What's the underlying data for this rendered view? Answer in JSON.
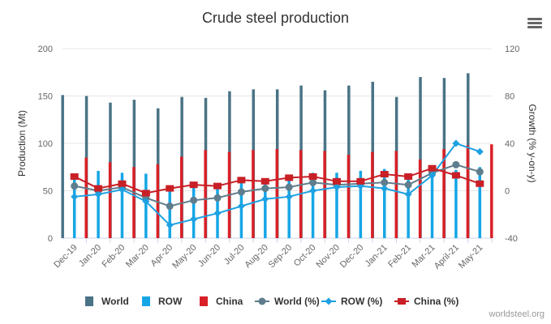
{
  "title": "Crude steel production",
  "credit": "worldsteel.org",
  "menu_icon": "hamburger-menu-icon",
  "colors": {
    "world": "#4a7386",
    "row": "#16a6e6",
    "china": "#d92027",
    "world_line": "#5f7d8c",
    "row_line": "#1da1e2",
    "china_line": "#c91f26"
  },
  "chart_data": {
    "type": "bar",
    "title": "Crude steel production",
    "categories": [
      "Dec-19",
      "Jan-20",
      "Feb-20",
      "Mar-20",
      "Apr-20",
      "May-20",
      "Jun-20",
      "Jul-20",
      "Aug-20",
      "Sep-20",
      "Oct-20",
      "Nov-20",
      "Dec-20",
      "Jan-21",
      "Feb-21",
      "Mar-21",
      "April-21",
      "May-21"
    ],
    "ylabel": "Production (Mt)",
    "ylim": [
      0,
      200
    ],
    "yticks": [
      0,
      50,
      100,
      150,
      200
    ],
    "y2label": "Growth (% y-on-y)",
    "y2lim": [
      -40,
      120
    ],
    "y2ticks": [
      -40,
      0,
      40,
      80,
      120
    ],
    "grid": true,
    "legend_position": "bottom",
    "series": [
      {
        "name": "World",
        "kind": "bar",
        "axis": "left",
        "color": "#4a7386",
        "values": [
          151,
          150,
          143,
          146,
          137,
          149,
          148,
          155,
          157,
          157,
          161,
          156,
          161,
          165,
          149,
          170,
          169,
          174
        ]
      },
      {
        "name": "ROW",
        "kind": "bar",
        "axis": "left",
        "color": "#16a6e6",
        "values": [
          66,
          71,
          69,
          68,
          51,
          56,
          57,
          62,
          63,
          64,
          69,
          69,
          71,
          73,
          66,
          77,
          72,
          75
        ]
      },
      {
        "name": "China",
        "kind": "bar",
        "axis": "left",
        "color": "#d92027",
        "values": [
          85,
          80,
          75,
          78,
          86,
          93,
          91,
          93,
          94,
          93,
          92,
          88,
          91,
          92,
          83,
          94,
          98,
          99
        ]
      },
      {
        "name": "World (%)",
        "kind": "line",
        "axis": "right",
        "color": "#5f7d8c",
        "marker": "circle",
        "values": [
          4,
          0,
          3,
          -6,
          -13,
          -8,
          -6,
          -1,
          2,
          3,
          7,
          5,
          6,
          7,
          5,
          15,
          22,
          16
        ]
      },
      {
        "name": "ROW (%)",
        "kind": "line",
        "axis": "right",
        "color": "#1da1e2",
        "marker": "diamond",
        "values": [
          -5,
          -3,
          1,
          -9,
          -29,
          -24,
          -19,
          -13,
          -7,
          -5,
          0,
          3,
          4,
          2,
          -3,
          13,
          40,
          33
        ]
      },
      {
        "name": "China (%)",
        "kind": "line",
        "axis": "right",
        "color": "#c91f26",
        "marker": "square",
        "values": [
          12,
          2,
          6,
          -2,
          2,
          5,
          4,
          9,
          8,
          11,
          12,
          8,
          8,
          14,
          12,
          19,
          13,
          6
        ]
      }
    ]
  }
}
